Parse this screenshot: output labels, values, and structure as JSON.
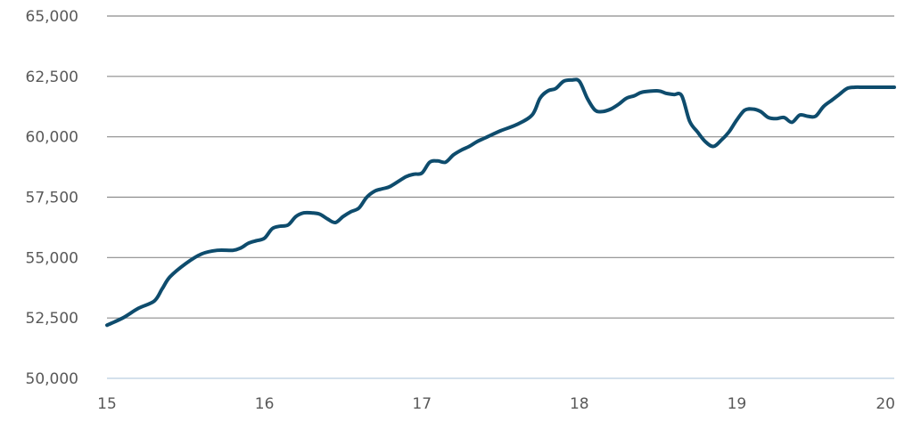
{
  "chart_data": {
    "type": "line",
    "title": "",
    "xlabel": "",
    "ylabel": "",
    "xlim": [
      15,
      20
    ],
    "ylim": [
      50000,
      65000
    ],
    "y_ticks": [
      50000,
      52500,
      55000,
      57500,
      60000,
      62500,
      65000
    ],
    "y_tick_labels": [
      "50,000",
      "52,500",
      "55,000",
      "57,500",
      "60,000",
      "62,500",
      "65,000"
    ],
    "x_ticks": [
      15,
      16,
      17,
      18,
      19,
      20
    ],
    "x_tick_labels": [
      "15",
      "16",
      "17",
      "18",
      "19",
      "20"
    ],
    "grid": "horizontal",
    "colors": {
      "line": "#0e4c6d",
      "grid": "#8c8c8c",
      "baseline": "#c5d6e6",
      "text": "#595959"
    },
    "series": [
      {
        "x": [
          15.0,
          15.1,
          15.2,
          15.3,
          15.35,
          15.4,
          15.5,
          15.6,
          15.7,
          15.8,
          15.85,
          15.9,
          15.95,
          16.0,
          16.05,
          16.1,
          16.15,
          16.2,
          16.25,
          16.3,
          16.35,
          16.4,
          16.45,
          16.5,
          16.55,
          16.6,
          16.65,
          16.7,
          16.75,
          16.8,
          16.9,
          16.95,
          17.0,
          17.05,
          17.1,
          17.15,
          17.2,
          17.25,
          17.3,
          17.35,
          17.4,
          17.5,
          17.6,
          17.7,
          17.75,
          17.8,
          17.85,
          17.9,
          17.95,
          18.0,
          18.05,
          18.1,
          18.15,
          18.2,
          18.25,
          18.3,
          18.35,
          18.4,
          18.5,
          18.55,
          18.6,
          18.65,
          18.7,
          18.75,
          18.8,
          18.85,
          18.9,
          18.95,
          19.0,
          19.05,
          19.1,
          19.15,
          19.2,
          19.25,
          19.3,
          19.35,
          19.4,
          19.45,
          19.5,
          19.55,
          19.6,
          19.65,
          19.7,
          19.75,
          19.8,
          19.85,
          19.9,
          19.95,
          20.0
        ],
        "y": [
          52200,
          52500,
          52900,
          53200,
          53700,
          54200,
          54750,
          55150,
          55300,
          55300,
          55400,
          55600,
          55700,
          55800,
          56200,
          56300,
          56350,
          56700,
          56850,
          56850,
          56800,
          56600,
          56450,
          56700,
          56900,
          57050,
          57500,
          57750,
          57850,
          57950,
          58350,
          58450,
          58500,
          58950,
          59000,
          58950,
          59250,
          59450,
          59600,
          59800,
          59950,
          60250,
          60500,
          60900,
          61600,
          61900,
          62000,
          62300,
          62350,
          62300,
          61600,
          61100,
          61050,
          61150,
          61350,
          61600,
          61700,
          61850,
          61900,
          61800,
          61750,
          61700,
          60650,
          60200,
          59800,
          59600,
          59850,
          60200,
          60700,
          61100,
          61150,
          61050,
          60800,
          60750,
          60800,
          60600,
          60900,
          60850,
          60850,
          61250,
          61500,
          61750,
          62000,
          62050,
          62050,
          62050,
          62050,
          62050,
          62050
        ]
      }
    ]
  }
}
